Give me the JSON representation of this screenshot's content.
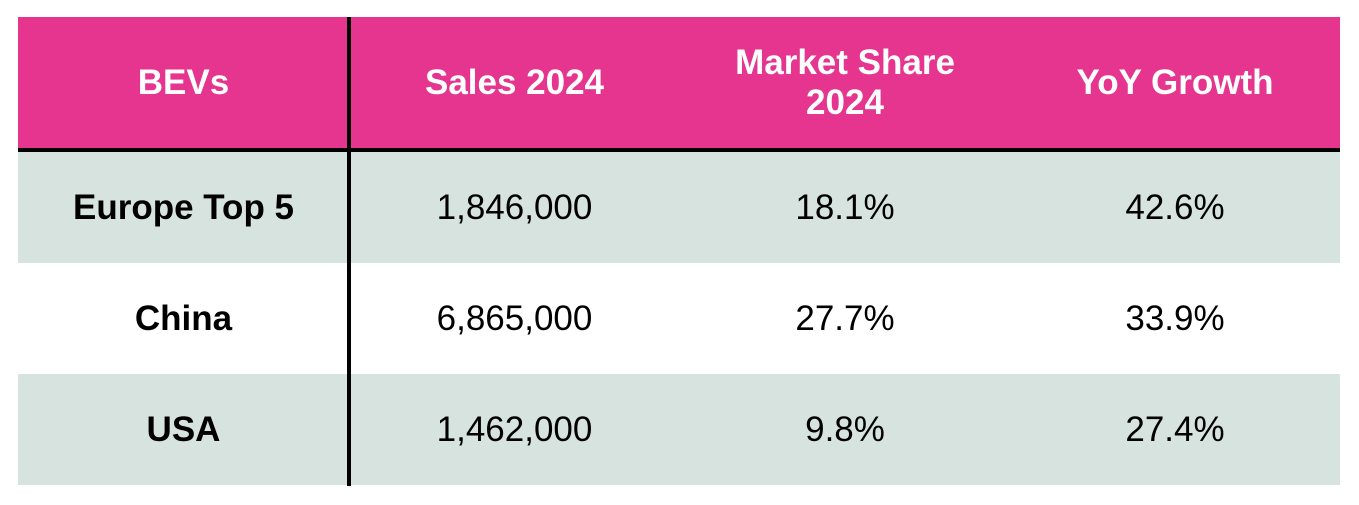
{
  "chart_data": {
    "type": "table",
    "columns": [
      "BEVs",
      "Sales 2024",
      "Market Share\n2024",
      "YoY Growth"
    ],
    "rows": [
      [
        "Europe Top 5",
        "1,846,000",
        "18.1%",
        "42.6%"
      ],
      [
        "China",
        "6,865,000",
        "27.7%",
        "33.9%"
      ],
      [
        "USA",
        "1,462,000",
        "9.8%",
        "27.4%"
      ]
    ]
  },
  "colors": {
    "header_background": "#e5358e",
    "header_text": "#ffffff",
    "band_background": "#d6e3df",
    "rule": "#000000"
  }
}
